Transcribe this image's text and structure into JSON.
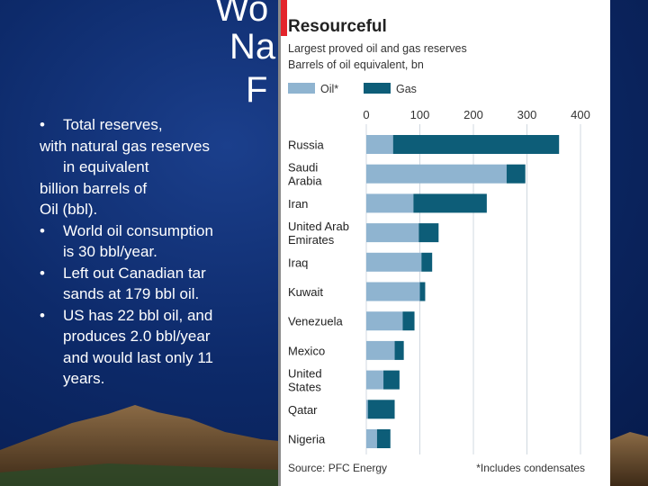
{
  "slide": {
    "title_lines": [
      "Wo",
      "Na",
      "F"
    ],
    "bullets": [
      {
        "dot": true,
        "text": "Total reserves,"
      },
      {
        "dot": false,
        "text": "with natural gas reserves"
      },
      {
        "dot": false,
        "text": "in equivalent"
      },
      {
        "dot": false,
        "text": "billion barrels of"
      },
      {
        "dot": false,
        "text": "Oil (bbl)."
      },
      {
        "dot": true,
        "text": "World oil consumption"
      },
      {
        "dot": false,
        "text": "is 30 bbl/year."
      },
      {
        "dot": true,
        "text": "Left out Canadian tar"
      },
      {
        "dot": false,
        "text": "sands at 179 bbl oil."
      },
      {
        "dot": true,
        "text": "US has 22 bbl oil, and"
      },
      {
        "dot": false,
        "text": "produces 2.0 bbl/year"
      },
      {
        "dot": false,
        "text": "and would last only 11"
      },
      {
        "dot": false,
        "text": "years."
      }
    ],
    "bullet_char": "•"
  },
  "chart_data": {
    "type": "bar",
    "orientation": "horizontal",
    "stacked": true,
    "title": "Resourceful",
    "subtitle": "Largest proved oil and gas reserves",
    "unit_label": "Barrels of oil equivalent, bn",
    "categories": [
      "Russia",
      "Saudi Arabia",
      "Iran",
      "United Arab Emirates",
      "Iraq",
      "Kuwait",
      "Venezuela",
      "Mexico",
      "United States",
      "Qatar",
      "Nigeria"
    ],
    "category_lines": [
      [
        "Russia"
      ],
      [
        "Saudi",
        "Arabia"
      ],
      [
        "Iran"
      ],
      [
        "United Arab",
        "Emirates"
      ],
      [
        "Iraq"
      ],
      [
        "Kuwait"
      ],
      [
        "Venezuela"
      ],
      [
        "Mexico"
      ],
      [
        "United",
        "States"
      ],
      [
        "Qatar"
      ],
      [
        "Nigeria"
      ]
    ],
    "series": [
      {
        "name": "Oil*",
        "color": "#8fb4d0",
        "values": [
          50,
          262,
          88,
          98,
          103,
          100,
          68,
          53,
          32,
          3,
          20
        ]
      },
      {
        "name": "Gas",
        "color": "#0d5d78",
        "values": [
          310,
          35,
          137,
          37,
          20,
          10,
          22,
          17,
          30,
          50,
          25
        ]
      }
    ],
    "xticks": [
      0,
      100,
      200,
      300,
      400
    ],
    "xlim": [
      0,
      400
    ],
    "legend_position": "top",
    "source": "Source: PFC Energy",
    "footnote": "*Includes condensates"
  }
}
